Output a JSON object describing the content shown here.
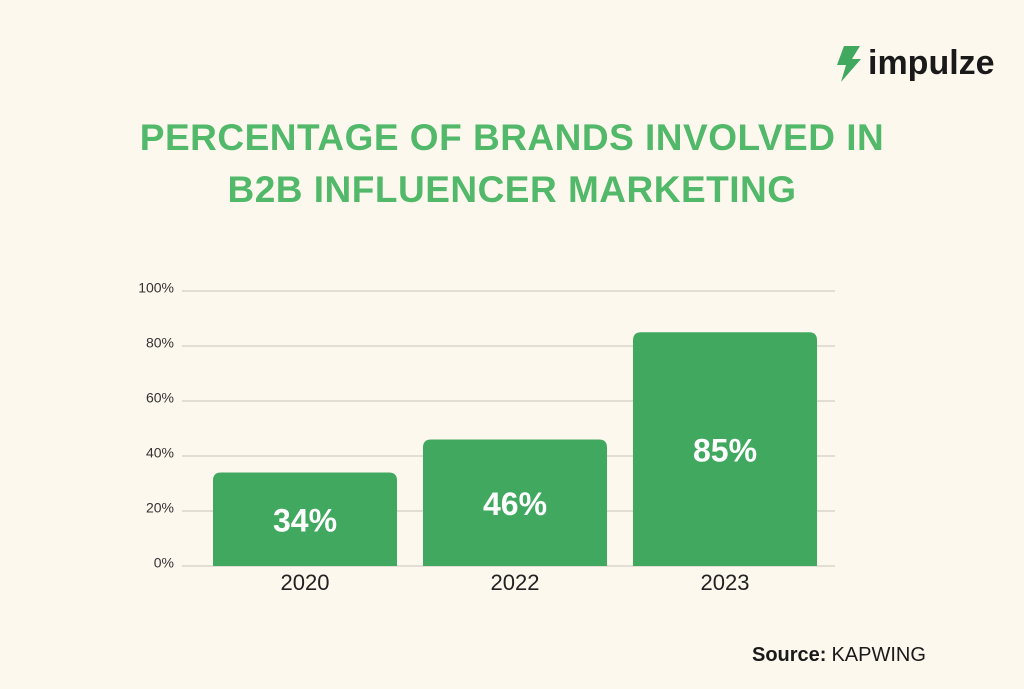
{
  "logo": "impulze",
  "chart_data": {
    "type": "bar",
    "title": "PERCENTAGE OF BRANDS INVOLVED IN B2B INFLUENCER MARKETING",
    "categories": [
      "2020",
      "2022",
      "2023"
    ],
    "values": [
      34,
      46,
      85
    ],
    "value_labels": [
      "34%",
      "46%",
      "85%"
    ],
    "color": "#41a85f",
    "ylim": [
      0,
      100
    ],
    "yticks": [
      {
        "value": 0,
        "label": "0%"
      },
      {
        "value": 20,
        "label": "20%"
      },
      {
        "value": 40,
        "label": "40%"
      },
      {
        "value": 60,
        "label": "60%"
      },
      {
        "value": 80,
        "label": "80%"
      },
      {
        "value": 100,
        "label": "100%"
      }
    ],
    "grid": true
  },
  "source": {
    "label": "Source:",
    "text": "KAPWING"
  }
}
